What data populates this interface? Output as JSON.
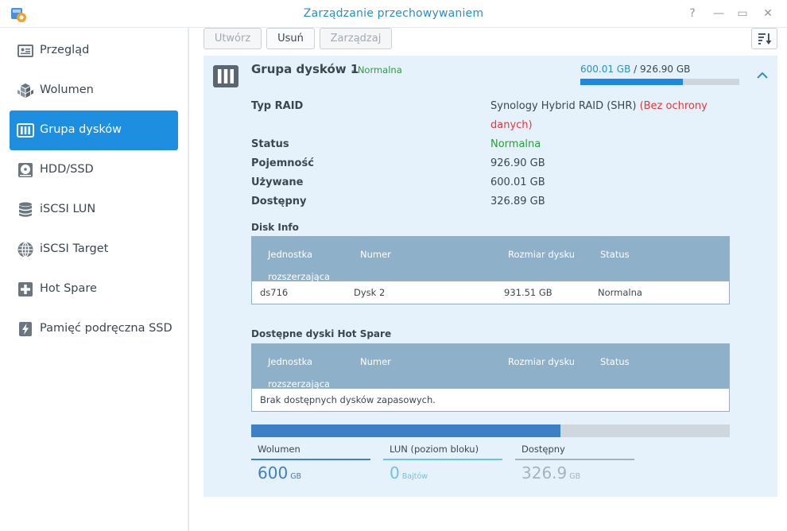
{
  "window": {
    "title": "Zarządzanie przechowywaniem",
    "help_glyph": "?",
    "minimize_glyph": "—",
    "maximize_glyph": "▭",
    "close_glyph": "✕"
  },
  "sidebar": {
    "items": [
      {
        "label": "Przegląd",
        "icon": "overview-icon"
      },
      {
        "label": "Wolumen",
        "icon": "volume-icon"
      },
      {
        "label": "Grupa dysków",
        "icon": "disk-group-icon",
        "active": true
      },
      {
        "label": "HDD/SSD",
        "icon": "hdd-icon"
      },
      {
        "label": "iSCSI LUN",
        "icon": "iscsi-lun-icon"
      },
      {
        "label": "iSCSI Target",
        "icon": "iscsi-target-icon"
      },
      {
        "label": "Hot Spare",
        "icon": "hot-spare-icon"
      },
      {
        "label": "Pamięć podręczna SSD",
        "icon": "ssd-cache-icon"
      }
    ]
  },
  "toolbar": {
    "create_label": "Utwórz",
    "remove_label": "Usuń",
    "manage_label": "Zarządzaj"
  },
  "group": {
    "title": "Grupa dysków 1",
    "status_sep": "-",
    "status": "Normalna",
    "used": "600.01 GB",
    "capacity_sep": "/",
    "total": "926.90 GB",
    "used_fraction": 0.647
  },
  "properties": {
    "raid_label": "Typ RAID",
    "raid_value": "Synology Hybrid RAID (SHR)",
    "raid_note_line1": "(Bez ochrony",
    "raid_note_line2": "danych)",
    "status_label": "Status",
    "status_value": "Normalna",
    "capacity_label": "Pojemność",
    "capacity_value": "926.90 GB",
    "used_label": "Używane",
    "used_value": "600.01 GB",
    "available_label": "Dostępny",
    "available_value": "326.89 GB"
  },
  "disk_info": {
    "title": "Disk Info",
    "columns": {
      "unit_line1": "Jednostka",
      "unit_line2": "rozszerzająca",
      "number": "Numer",
      "size": "Rozmiar dysku",
      "status": "Status"
    },
    "rows": [
      {
        "unit": "ds716",
        "number": "Dysk 2",
        "size": "931.51 GB",
        "status": "Normalna"
      }
    ]
  },
  "hot_spare": {
    "title": "Dostępne dyski Hot Spare",
    "columns": {
      "unit_line1": "Jednostka",
      "unit_line2": "rozszerzająca",
      "number": "Numer",
      "size": "Rozmiar dysku",
      "status": "Status"
    },
    "empty_message": "Brak dostępnych dysków zapasowych."
  },
  "usage": {
    "volume_fraction": 0.647,
    "volume": {
      "label": "Wolumen",
      "value": "600",
      "unit": "GB",
      "color": "#3d80c6"
    },
    "lun": {
      "label": "LUN (poziom bloku)",
      "value": "0",
      "unit": "Bajtów",
      "color": "#6ec1e8"
    },
    "available": {
      "label": "Dostępny",
      "value": "326.9",
      "unit": "GB",
      "color": "#a8b2ba"
    }
  }
}
